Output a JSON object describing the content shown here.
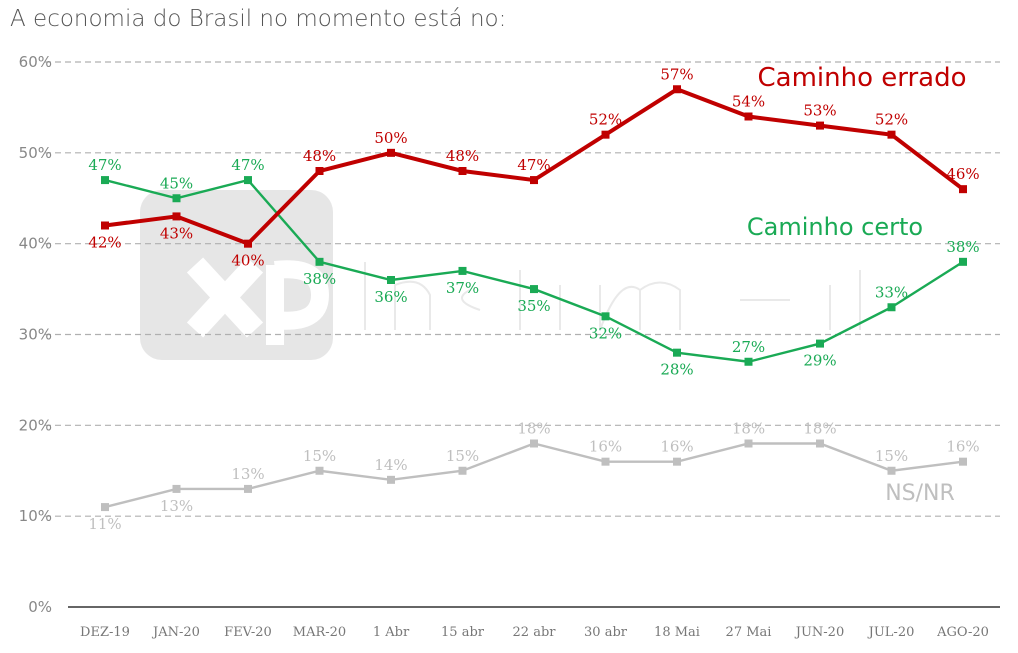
{
  "title": "A economia do Brasil no momento está no:",
  "watermark": "xp investimentos",
  "chart_data": {
    "type": "line",
    "title": "A economia do Brasil no momento está no:",
    "xlabel": "",
    "ylabel": "",
    "ylim": [
      0,
      60
    ],
    "yticks": [
      "0%",
      "10%",
      "20%",
      "30%",
      "40%",
      "50%",
      "60%"
    ],
    "grid": true,
    "categories": [
      "DEZ-19",
      "JAN-20",
      "FEV-20",
      "MAR-20",
      "1 Abr",
      "15 abr",
      "22 abr",
      "30 abr",
      "18 Mai",
      "27 Mai",
      "JUN-20",
      "JUL-20",
      "AGO-20"
    ],
    "series": [
      {
        "name": "Caminho errado",
        "color": "#c00000",
        "values": [
          42,
          43,
          40,
          48,
          50,
          48,
          47,
          52,
          57,
          54,
          53,
          52,
          46
        ]
      },
      {
        "name": "Caminho certo",
        "color": "#1aaa55",
        "values": [
          47,
          45,
          47,
          38,
          36,
          37,
          35,
          32,
          28,
          27,
          29,
          33,
          38
        ]
      },
      {
        "name": "NS/NR",
        "color": "#bfbfbf",
        "values": [
          11,
          13,
          13,
          15,
          14,
          15,
          18,
          16,
          16,
          18,
          18,
          15,
          16
        ]
      }
    ]
  }
}
